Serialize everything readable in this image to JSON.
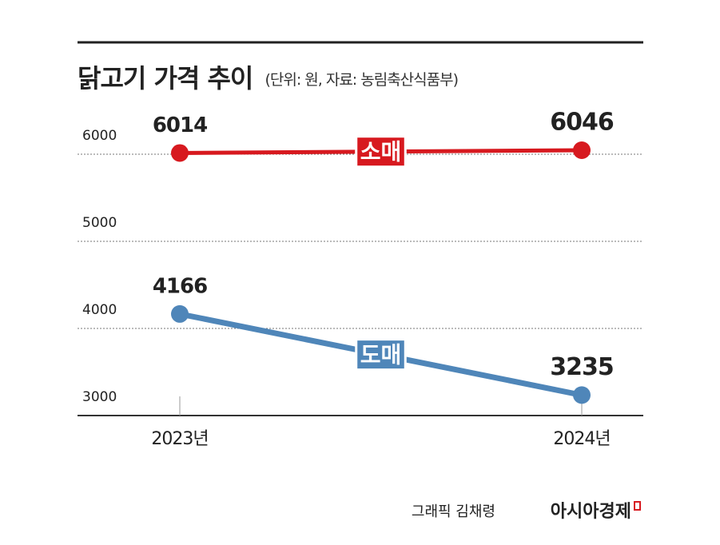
{
  "chart_data": {
    "type": "line",
    "title": "닭고기 가격 추이",
    "subtitle": "(단위: 원, 자료: 농림축산식품부)",
    "categories": [
      "2023년",
      "2024년"
    ],
    "series": [
      {
        "name": "소매",
        "color": "#d7191f",
        "values": [
          6014,
          6046
        ]
      },
      {
        "name": "도매",
        "color": "#4f86b9",
        "values": [
          4166,
          3235
        ]
      }
    ],
    "ylim": [
      3000,
      6000
    ],
    "yticks": [
      3000,
      4000,
      5000,
      6000
    ],
    "grid": true,
    "credit": "그래픽 김채령",
    "brand": "아시아경제"
  }
}
